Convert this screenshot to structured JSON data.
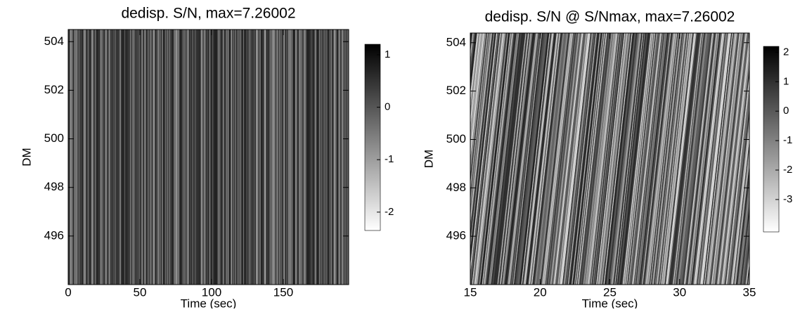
{
  "chart_data": [
    {
      "type": "heatmap",
      "title": "dedisp. S/N, max=7.26002",
      "xlabel": "Time (sec)",
      "ylabel": "DM",
      "xlim": [
        0,
        195.6
      ],
      "xticks": [
        0,
        50,
        100,
        150
      ],
      "ylim": [
        494,
        504.5
      ],
      "yticks": [
        496,
        498,
        500,
        502,
        504
      ],
      "colorbar_lim": [
        -2.35,
        1.2
      ],
      "colorbar_ticks": [
        -2,
        -1,
        0,
        1
      ],
      "slant": 0
    },
    {
      "type": "heatmap",
      "title": "dedisp. S/N @ S/Nmax, max=7.26002",
      "xlabel": "Time (sec)",
      "ylabel": "DM",
      "xlim": [
        15,
        35
      ],
      "xticks": [
        15,
        20,
        25,
        30,
        35
      ],
      "ylim": [
        494,
        504.4
      ],
      "yticks": [
        496,
        498,
        500,
        502,
        504
      ],
      "colorbar_lim": [
        -4.1,
        2.2
      ],
      "colorbar_ticks": [
        -3,
        -2,
        -1,
        0,
        1,
        2
      ],
      "slant": 1
    }
  ]
}
